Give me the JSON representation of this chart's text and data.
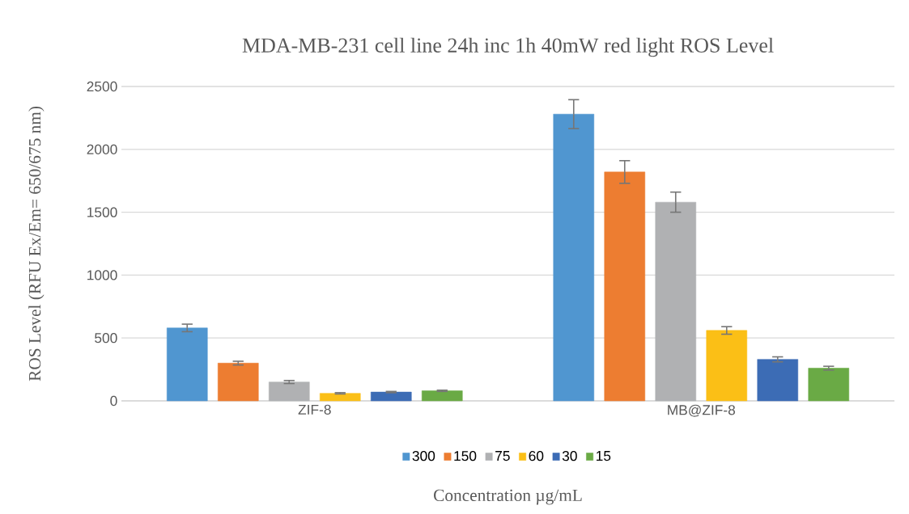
{
  "chart_data": {
    "type": "bar",
    "title": "MDA-MB-231 cell line  24h inc 1h 40mW red light ROS Level",
    "xlabel": "Concentration µg/mL",
    "ylabel": "ROS Level (RFU Ex/Em= 650/675 nm)",
    "categories": [
      "ZIF-8",
      "MB@ZIF-8"
    ],
    "series": [
      {
        "name": "300",
        "color": "#5096d0",
        "values": [
          580,
          2280
        ],
        "errors": [
          30,
          115
        ]
      },
      {
        "name": "150",
        "color": "#ed7d31",
        "values": [
          300,
          1820
        ],
        "errors": [
          15,
          90
        ]
      },
      {
        "name": "75",
        "color": "#b0b1b3",
        "values": [
          150,
          1580
        ],
        "errors": [
          12,
          80
        ]
      },
      {
        "name": "60",
        "color": "#fbbf16",
        "values": [
          60,
          560
        ],
        "errors": [
          5,
          30
        ]
      },
      {
        "name": "30",
        "color": "#3c6cb5",
        "values": [
          70,
          330
        ],
        "errors": [
          5,
          20
        ]
      },
      {
        "name": "15",
        "color": "#6aaa45",
        "values": [
          80,
          260
        ],
        "errors": [
          5,
          15
        ]
      }
    ],
    "ylim": [
      0,
      2500
    ],
    "yticks": [
      0,
      500,
      1000,
      1500,
      2000,
      2500
    ],
    "grid": "y",
    "legend": "bottom"
  }
}
